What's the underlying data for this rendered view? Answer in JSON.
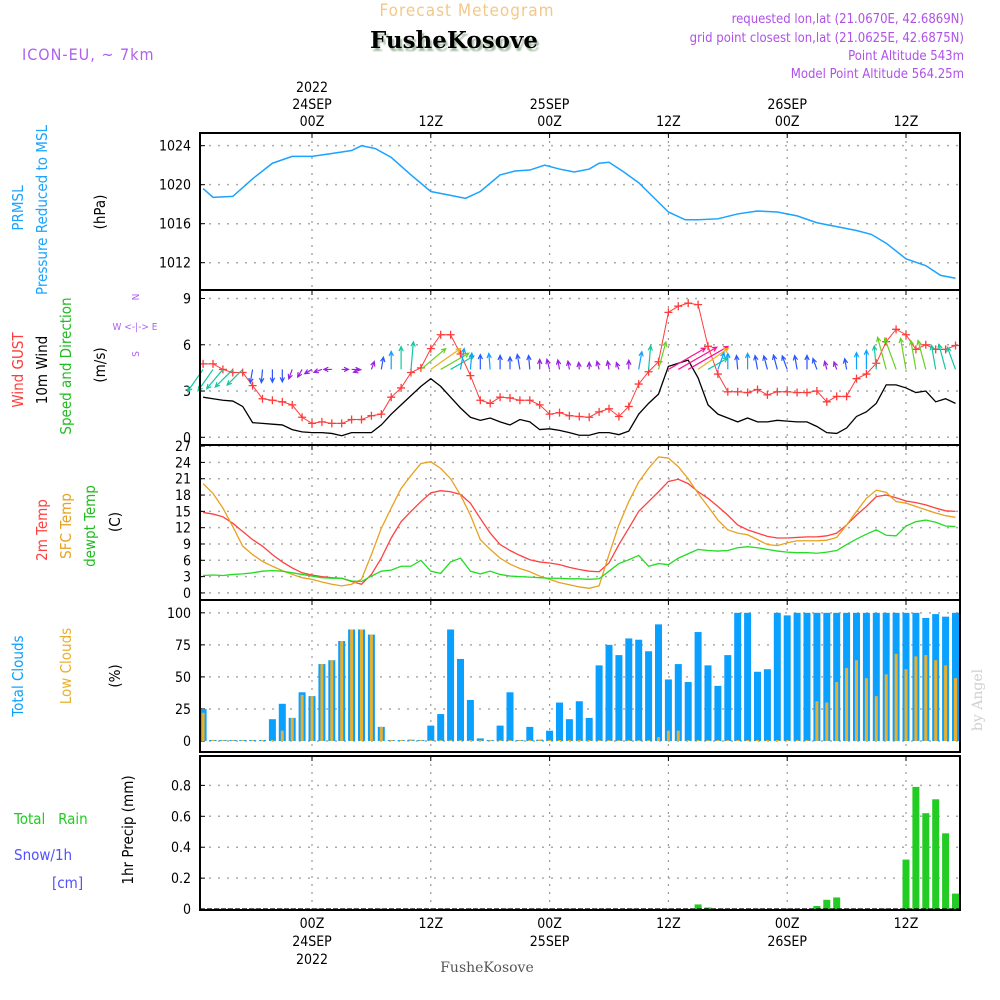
{
  "header": {
    "title": "Forecast Meteogram",
    "station": "FusheKosove",
    "model": "ICON-EU, ~ 7km",
    "requested": "requested lon,lat (21.0670E, 42.6869N)",
    "closest": "grid point closest lon,lat (21.0625E, 42.6875N)",
    "altitude": "Point Altitude 543m",
    "model_altitude": "Model Point Altitude 564.25m"
  },
  "footer": {
    "station": "FusheKosove",
    "credit": "by Angel"
  },
  "time_axis": {
    "top": [
      {
        "hour": 0,
        "lines": [
          "2022",
          "24SEP",
          "00Z"
        ]
      },
      {
        "hour": 12,
        "lines": [
          "12Z"
        ]
      },
      {
        "hour": 24,
        "lines": [
          "25SEP",
          "00Z"
        ]
      },
      {
        "hour": 36,
        "lines": [
          "12Z"
        ]
      },
      {
        "hour": 48,
        "lines": [
          "26SEP",
          "00Z"
        ]
      },
      {
        "hour": 60,
        "lines": [
          "12Z"
        ]
      }
    ],
    "bottom": [
      {
        "hour": 0,
        "lines": [
          "00Z",
          "24SEP",
          "2022"
        ]
      },
      {
        "hour": 12,
        "lines": [
          "12Z"
        ]
      },
      {
        "hour": 24,
        "lines": [
          "00Z",
          "25SEP"
        ]
      },
      {
        "hour": 36,
        "lines": [
          "12Z"
        ]
      },
      {
        "hour": 48,
        "lines": [
          "00Z",
          "26SEP"
        ]
      },
      {
        "hour": 60,
        "lines": [
          "12Z"
        ]
      }
    ]
  },
  "panel_labels": {
    "pressure": {
      "a": "PRMSL",
      "b": "Pressure Reduced to MSL",
      "unit": "(hPa)"
    },
    "wind": {
      "a": "Wind GUST",
      "b": "10m Wind",
      "c": "Speed and Direction",
      "unit": "(m/s)",
      "compass_n": "N",
      "compass_ew": "W <-|-> E",
      "compass_s": "S"
    },
    "temp": {
      "a": "2m Temp",
      "b": "SFC Temp",
      "c": "dewpt Temp",
      "unit": "(C)"
    },
    "clouds": {
      "a": "Total Clouds",
      "b": "Low Clouds",
      "unit": "(%)"
    },
    "precip": {
      "a": "Total   Rain",
      "b": "Snow/1h",
      "c": "[cm]",
      "unit": "1hr Precip (mm)"
    }
  },
  "colors": {
    "pressure": "#1aa3ff",
    "gust": "#ff3b3b",
    "wind": "#000000",
    "t2m": "#ff4040",
    "tsfc": "#e8a020",
    "dewpt": "#22dd22",
    "total_clouds": "#0aa0ff",
    "low_clouds": "#e8b030",
    "rain": "#22cc22",
    "snow": "#5050ff"
  },
  "chart_data": [
    {
      "type": "line",
      "title": "PRMSL Pressure Reduced to MSL",
      "ylabel": "(hPa)",
      "yticks": [
        "1012",
        "1016",
        "1020",
        "1024"
      ],
      "ylim": [
        1009.2,
        1025.3
      ],
      "x_unit": "hours from 00Z 24SEP2022",
      "points": [
        [
          -11,
          1019.6
        ],
        [
          -10,
          1018.7
        ],
        [
          -8,
          1018.8
        ],
        [
          -6,
          1020.6
        ],
        [
          -4,
          1022.2
        ],
        [
          -2,
          1022.9
        ],
        [
          0,
          1022.9
        ],
        [
          2,
          1023.2
        ],
        [
          4,
          1023.5
        ],
        [
          5,
          1024
        ],
        [
          6.4,
          1023.7
        ],
        [
          8,
          1022.8
        ],
        [
          10,
          1021
        ],
        [
          12,
          1019.3
        ],
        [
          14,
          1018.9
        ],
        [
          15.5,
          1018.6
        ],
        [
          17,
          1019.3
        ],
        [
          19,
          1021
        ],
        [
          20.5,
          1021.4
        ],
        [
          22,
          1021.5
        ],
        [
          23.5,
          1022
        ],
        [
          25,
          1021.6
        ],
        [
          26.5,
          1021.3
        ],
        [
          28,
          1021.6
        ],
        [
          29,
          1022.2
        ],
        [
          30,
          1022.3
        ],
        [
          31.5,
          1021.3
        ],
        [
          33,
          1020.2
        ],
        [
          34,
          1019.2
        ],
        [
          36,
          1017.2
        ],
        [
          37.7,
          1016.4
        ],
        [
          39,
          1016.4
        ],
        [
          41,
          1016.5
        ],
        [
          43,
          1017
        ],
        [
          45,
          1017.3
        ],
        [
          47,
          1017.2
        ],
        [
          49,
          1016.8
        ],
        [
          51,
          1016.1
        ],
        [
          53,
          1015.7
        ],
        [
          55,
          1015.3
        ],
        [
          56.5,
          1014.9
        ],
        [
          58,
          1014
        ],
        [
          60,
          1012.4
        ],
        [
          62,
          1011.7
        ],
        [
          63.5,
          1010.7
        ],
        [
          65,
          1010.4
        ]
      ]
    },
    {
      "type": "line",
      "title": "Wind GUST / 10m Wind Speed and Direction",
      "ylabel": "(m/s)",
      "yticks": [
        "0",
        "3",
        "6",
        "9"
      ],
      "ylim": [
        -0.5,
        9.55
      ],
      "start_hour": -11,
      "gust": [
        4.76,
        4.76,
        4.4,
        4.2,
        4.2,
        3.35,
        2.5,
        2.4,
        2.3,
        2.1,
        1.3,
        0.9,
        1.0,
        0.9,
        0.9,
        1.15,
        1.15,
        1.4,
        1.5,
        2.6,
        3.2,
        4.2,
        4.5,
        5.75,
        6.65,
        6.65,
        5.4,
        4.0,
        2.4,
        2.2,
        2.6,
        2.55,
        2.4,
        2.4,
        2.1,
        1.5,
        1.6,
        1.4,
        1.35,
        1.3,
        1.65,
        1.85,
        1.35,
        2.0,
        3.45,
        4.25,
        4.9,
        8.1,
        8.5,
        8.7,
        8.6,
        5.9,
        4.1,
        2.95,
        2.95,
        2.9,
        3.1,
        2.75,
        2.95,
        2.95,
        2.9,
        2.9,
        3.0,
        2.3,
        2.65,
        2.65,
        3.8,
        4.1,
        4.8,
        6.2,
        7.0,
        6.65,
        5.7,
        6.0,
        5.7,
        5.7,
        5.95
      ],
      "wind10m": [
        2.6,
        2.5,
        2.4,
        2.35,
        2.0,
        0.95,
        0.9,
        0.85,
        0.8,
        0.5,
        0.35,
        0.3,
        0.3,
        0.25,
        0.1,
        0.3,
        0.3,
        0.3,
        0.8,
        1.5,
        2.1,
        2.7,
        3.3,
        3.8,
        3.3,
        2.6,
        1.9,
        1.3,
        1.1,
        1.25,
        1.0,
        0.8,
        1.15,
        1.0,
        0.5,
        0.55,
        0.45,
        0.3,
        0.13,
        0.13,
        0.3,
        0.3,
        0.17,
        0.4,
        1.5,
        2.2,
        2.8,
        4.6,
        4.8,
        5.0,
        3.85,
        2.1,
        1.5,
        1.25,
        1.0,
        1.25,
        1.0,
        1.0,
        1.1,
        1.05,
        1.0,
        1.0,
        0.7,
        0.3,
        0.25,
        0.6,
        1.35,
        1.65,
        2.2,
        3.4,
        3.4,
        3.2,
        2.9,
        3.0,
        2.3,
        2.5,
        2.2
      ],
      "direction_to_deg": [
        215,
        215,
        220,
        225,
        225,
        190,
        185,
        180,
        180,
        200,
        210,
        240,
        250,
        270,
        90,
        90,
        250,
        20,
        10,
        0,
        0,
        5,
        50,
        55,
        60,
        60,
        10,
        5,
        0,
        355,
        0,
        0,
        350,
        355,
        0,
        345,
        350,
        350,
        355,
        0,
        345,
        350,
        340,
        0,
        10,
        5,
        15,
        60,
        60,
        60,
        55,
        60,
        20,
        0,
        355,
        0,
        350,
        345,
        345,
        340,
        350,
        0,
        340,
        345,
        340,
        350,
        0,
        0,
        355,
        345,
        340,
        350,
        350,
        345,
        350,
        345,
        340
      ]
    },
    {
      "type": "line",
      "title": "2m Temp / SFC Temp / dewpt Temp",
      "ylabel": "(C)",
      "yticks": [
        "0",
        "3",
        "6",
        "9",
        "12",
        "15",
        "18",
        "21",
        "24",
        "27"
      ],
      "ylim": [
        -1.3,
        27.2
      ],
      "start_hour": -11,
      "series": [
        {
          "name": "2m Temp",
          "values": [
            14.8,
            14.5,
            14.0,
            12.8,
            11.3,
            9.8,
            8.6,
            7.05,
            5.7,
            4.6,
            3.7,
            3.3,
            3.0,
            2.8,
            2.7,
            2.1,
            1.6,
            3.4,
            6.4,
            10.1,
            13.1,
            15.0,
            16.8,
            18.4,
            18.8,
            18.6,
            18.1,
            16.5,
            13.7,
            11.0,
            8.9,
            7.8,
            6.9,
            6.1,
            5.7,
            5.5,
            5.2,
            4.7,
            4.3,
            4.0,
            3.9,
            5.5,
            8.9,
            11.9,
            15.0,
            16.8,
            18.6,
            20.5,
            20.9,
            20.1,
            18.6,
            17.4,
            15.9,
            14.3,
            12.5,
            11.6,
            11.0,
            10.4,
            10.1,
            10.1,
            10.2,
            10.3,
            10.3,
            10.5,
            11.0,
            12.5,
            14.3,
            15.9,
            17.7,
            18.0,
            17.5,
            16.9,
            16.6,
            16.2,
            15.6,
            15.1,
            15.0
          ]
        },
        {
          "name": "SFC Temp",
          "values": [
            20.1,
            18.3,
            15.6,
            12.2,
            8.6,
            7.05,
            5.8,
            4.9,
            4.1,
            3.4,
            2.8,
            2.5,
            2.0,
            1.6,
            1.3,
            1.6,
            2.5,
            7.05,
            11.9,
            15.6,
            19.2,
            21.6,
            23.8,
            24.1,
            22.9,
            21.0,
            18.0,
            14.3,
            9.8,
            8.0,
            6.4,
            5.3,
            4.5,
            3.9,
            3.1,
            2.5,
            1.9,
            1.5,
            1.1,
            0.85,
            1.3,
            7.05,
            12.5,
            16.8,
            20.4,
            22.9,
            25.0,
            24.8,
            23.2,
            21.0,
            18.3,
            15.9,
            13.4,
            11.6,
            11.0,
            10.7,
            9.8,
            8.9,
            8.7,
            9.2,
            9.6,
            9.6,
            9.6,
            9.7,
            10.2,
            12.5,
            15.0,
            17.4,
            18.9,
            18.5,
            16.8,
            16.5,
            15.9,
            15.3,
            14.7,
            14.2,
            13.9
          ]
        },
        {
          "name": "dewpt Temp",
          "values": [
            3.2,
            3.3,
            3.2,
            3.4,
            3.5,
            3.7,
            4.0,
            4.1,
            4.0,
            3.7,
            3.4,
            3.1,
            2.8,
            2.7,
            2.7,
            2.2,
            2.1,
            3.1,
            4.0,
            4.2,
            4.9,
            4.9,
            6.0,
            4.0,
            3.6,
            5.7,
            6.4,
            4.0,
            3.5,
            4.0,
            3.4,
            3.1,
            3.0,
            2.9,
            2.8,
            2.7,
            2.7,
            2.6,
            2.6,
            2.5,
            2.6,
            4.0,
            5.4,
            6.1,
            6.9,
            4.9,
            5.4,
            5.2,
            6.4,
            7.2,
            8.0,
            7.8,
            7.7,
            7.8,
            8.3,
            8.5,
            8.3,
            8.0,
            7.7,
            7.5,
            7.4,
            7.4,
            7.3,
            7.5,
            7.8,
            8.9,
            9.9,
            10.8,
            11.6,
            10.6,
            10.5,
            12.3,
            13.1,
            13.4,
            13.0,
            12.3,
            12.2
          ]
        }
      ]
    },
    {
      "type": "bar",
      "title": "Total Clouds / Low Clouds",
      "ylabel": "(%)",
      "yticks": [
        "0",
        "25",
        "50",
        "75",
        "100"
      ],
      "ylim": [
        -8.6,
        110
      ],
      "start_hour": -11,
      "series": [
        {
          "name": "Total Clouds",
          "values": [
            25,
            0,
            0,
            0,
            0,
            0,
            0,
            17,
            29,
            18,
            38,
            35,
            60,
            63,
            78,
            87,
            87,
            83,
            11,
            0,
            0,
            1,
            0,
            12,
            21,
            87,
            64,
            32,
            2,
            0,
            12,
            38,
            0,
            11,
            1,
            8,
            30,
            17,
            31,
            18,
            59,
            75,
            67,
            80,
            79,
            70,
            91,
            48,
            60,
            46,
            85,
            59,
            43,
            67,
            100,
            100,
            54,
            56,
            100,
            98,
            100,
            100,
            100,
            100,
            100,
            100,
            100,
            100,
            100,
            100,
            100,
            100,
            100,
            96,
            99,
            97,
            100
          ]
        },
        {
          "name": "Low Clouds",
          "values": [
            22,
            0,
            0,
            0,
            0,
            0,
            0,
            0,
            8,
            18,
            36,
            35,
            60,
            63,
            78,
            87,
            87,
            83,
            11,
            0,
            0,
            1,
            0,
            0,
            0,
            0,
            0,
            0,
            0,
            0,
            0,
            0,
            0,
            0,
            0,
            0,
            0,
            0,
            0,
            0,
            0,
            0,
            0,
            0,
            0,
            0,
            3,
            8,
            8,
            0,
            0,
            0,
            0,
            0,
            0,
            0,
            0,
            0,
            0,
            0,
            0,
            0,
            31,
            30,
            46,
            57,
            63,
            49,
            35,
            52,
            68,
            56,
            66,
            67,
            63,
            59,
            49
          ]
        }
      ]
    },
    {
      "type": "bar",
      "title": "1hr Precip",
      "ylabel": "1hr Precip (mm)",
      "yticks": [
        "0",
        "0.2",
        "0.4",
        "0.6",
        "0.8"
      ],
      "ylim": [
        -0.006,
        0.99
      ],
      "start_hour": -11,
      "series": [
        {
          "name": "Total Rain",
          "values": [
            0,
            0,
            0,
            0,
            0,
            0,
            0,
            0,
            0,
            0,
            0,
            0,
            0,
            0,
            0,
            0,
            0,
            0,
            0,
            0,
            0,
            0,
            0,
            0,
            0,
            0,
            0,
            0,
            0,
            0,
            0,
            0,
            0,
            0,
            0,
            0,
            0,
            0,
            0,
            0,
            0,
            0,
            0,
            0,
            0,
            0,
            0,
            0,
            0,
            0,
            0.03,
            0.01,
            0,
            0,
            0,
            0,
            0,
            0,
            0,
            0,
            0,
            0,
            0.02,
            0.06,
            0.075,
            0,
            0,
            0,
            0,
            0,
            0,
            0.32,
            0.79,
            0.62,
            0.71,
            0.49,
            0.1
          ]
        },
        {
          "name": "Snow/1h",
          "values": []
        }
      ]
    }
  ]
}
